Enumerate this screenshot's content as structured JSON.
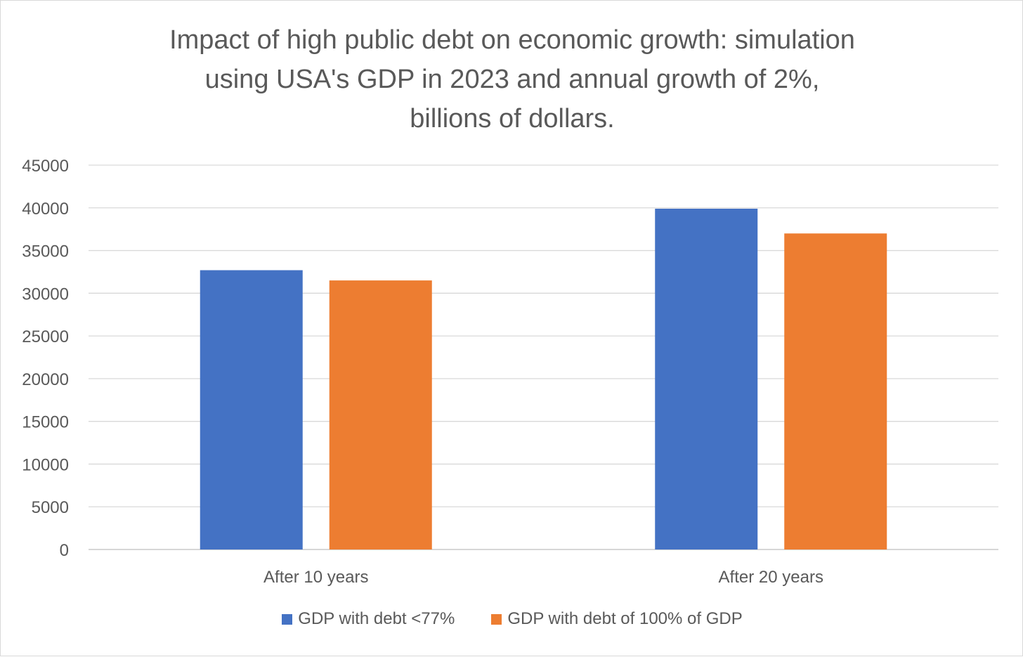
{
  "chart_data": {
    "type": "bar",
    "title_lines": [
      "Impact of high public debt on economic growth: simulation",
      "using USA's GDP in 2023 and annual growth of 2%,",
      "billions of dollars."
    ],
    "categories": [
      "After 10 years",
      "After 20 years"
    ],
    "series": [
      {
        "name": "GDP with debt <77%",
        "color": "#4472C4",
        "values": [
          32700,
          39900
        ]
      },
      {
        "name": "GDP with debt of 100% of GDP",
        "color": "#ED7D31",
        "values": [
          31500,
          37000
        ]
      }
    ],
    "ylim": [
      0,
      45000
    ],
    "yticks": [
      0,
      5000,
      10000,
      15000,
      20000,
      25000,
      30000,
      35000,
      40000,
      45000
    ],
    "grid": true,
    "legend_position": "bottom"
  }
}
